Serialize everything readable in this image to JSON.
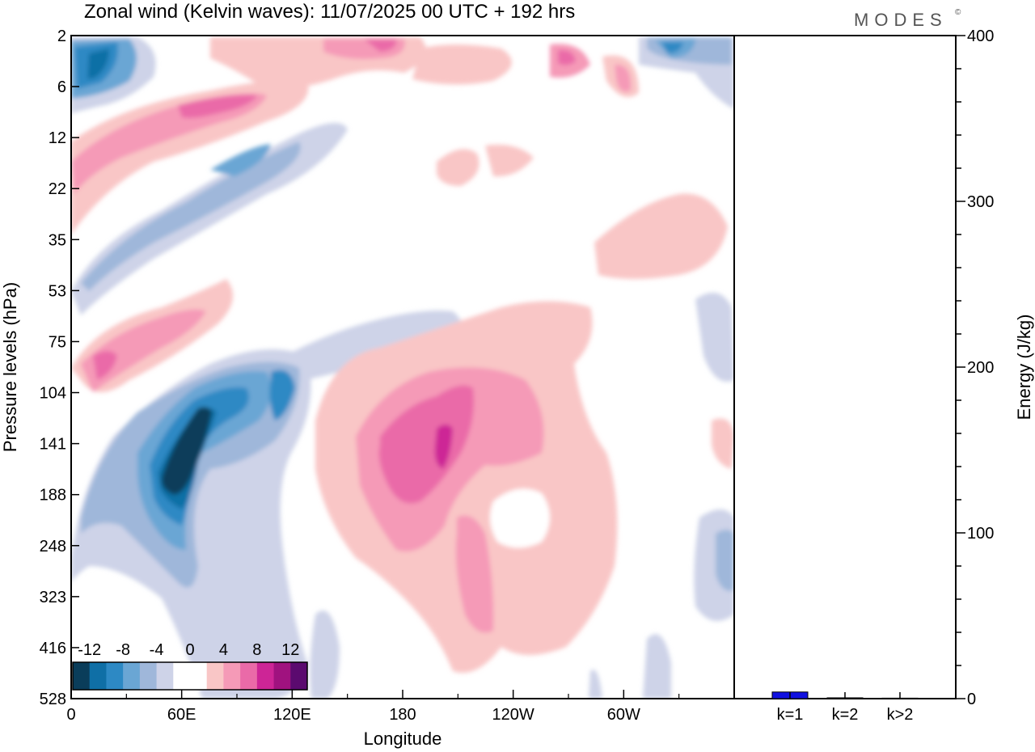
{
  "chart_data": [
    {
      "type": "heatmap",
      "title": "Zonal wind (Kelvin waves):  11/07/2025  00 UTC  + 192 hrs",
      "xlabel": "Longitude",
      "ylabel": "Pressure levels (hPa)",
      "x_ticks": [
        {
          "label": "0",
          "deg": 0
        },
        {
          "label": "60E",
          "deg": 60
        },
        {
          "label": "120E",
          "deg": 120
        },
        {
          "label": "180",
          "deg": 180
        },
        {
          "label": "120W",
          "deg": 240
        },
        {
          "label": "60W",
          "deg": 300
        }
      ],
      "xlim": [
        0,
        360
      ],
      "y_levels": [
        "2",
        "6",
        "12",
        "22",
        "35",
        "53",
        "75",
        "104",
        "141",
        "188",
        "248",
        "323",
        "416",
        "528"
      ],
      "colorbar": {
        "labels": [
          "-12",
          "-8",
          "-4",
          "0",
          "4",
          "8",
          "12"
        ],
        "colors": [
          "#0a3d5a",
          "#0f6fa6",
          "#2d89c4",
          "#6aa6d4",
          "#9fb7da",
          "#ced3e8",
          "#ffffff",
          "#ffffff",
          "#f9c6c6",
          "#f59ab7",
          "#ea6aa8",
          "#cd2596",
          "#a0127f",
          "#5b0a6f"
        ]
      },
      "features": [
        {
          "kind": "negative",
          "level": 4,
          "description": "strongest easterly core near 60E-70E, 104-188 hPa"
        },
        {
          "kind": "positive",
          "level": 4,
          "description": "westerly maximum near 180-200E, 104-188 hPa"
        },
        {
          "kind": "negative",
          "level": 3,
          "description": "stratospheric easterly band 0-20E, 2-6 hPa"
        },
        {
          "kind": "positive",
          "level": 2,
          "description": "tilted westerly bands near 6-22 hPa and 53-104 hPa"
        }
      ]
    },
    {
      "type": "bar",
      "ylabel": "Energy (J/kg)",
      "categories": [
        "k=1",
        "k=2",
        "k>2"
      ],
      "values": [
        4,
        0.5,
        0.3
      ],
      "ylim": [
        0,
        400
      ],
      "y_ticks": [
        "0",
        "100",
        "200",
        "300",
        "400"
      ],
      "colors": [
        "#1010e0",
        "#1010e0",
        "#1010e0"
      ]
    }
  ],
  "branding": {
    "logo": "MODES",
    "mark": "©"
  }
}
